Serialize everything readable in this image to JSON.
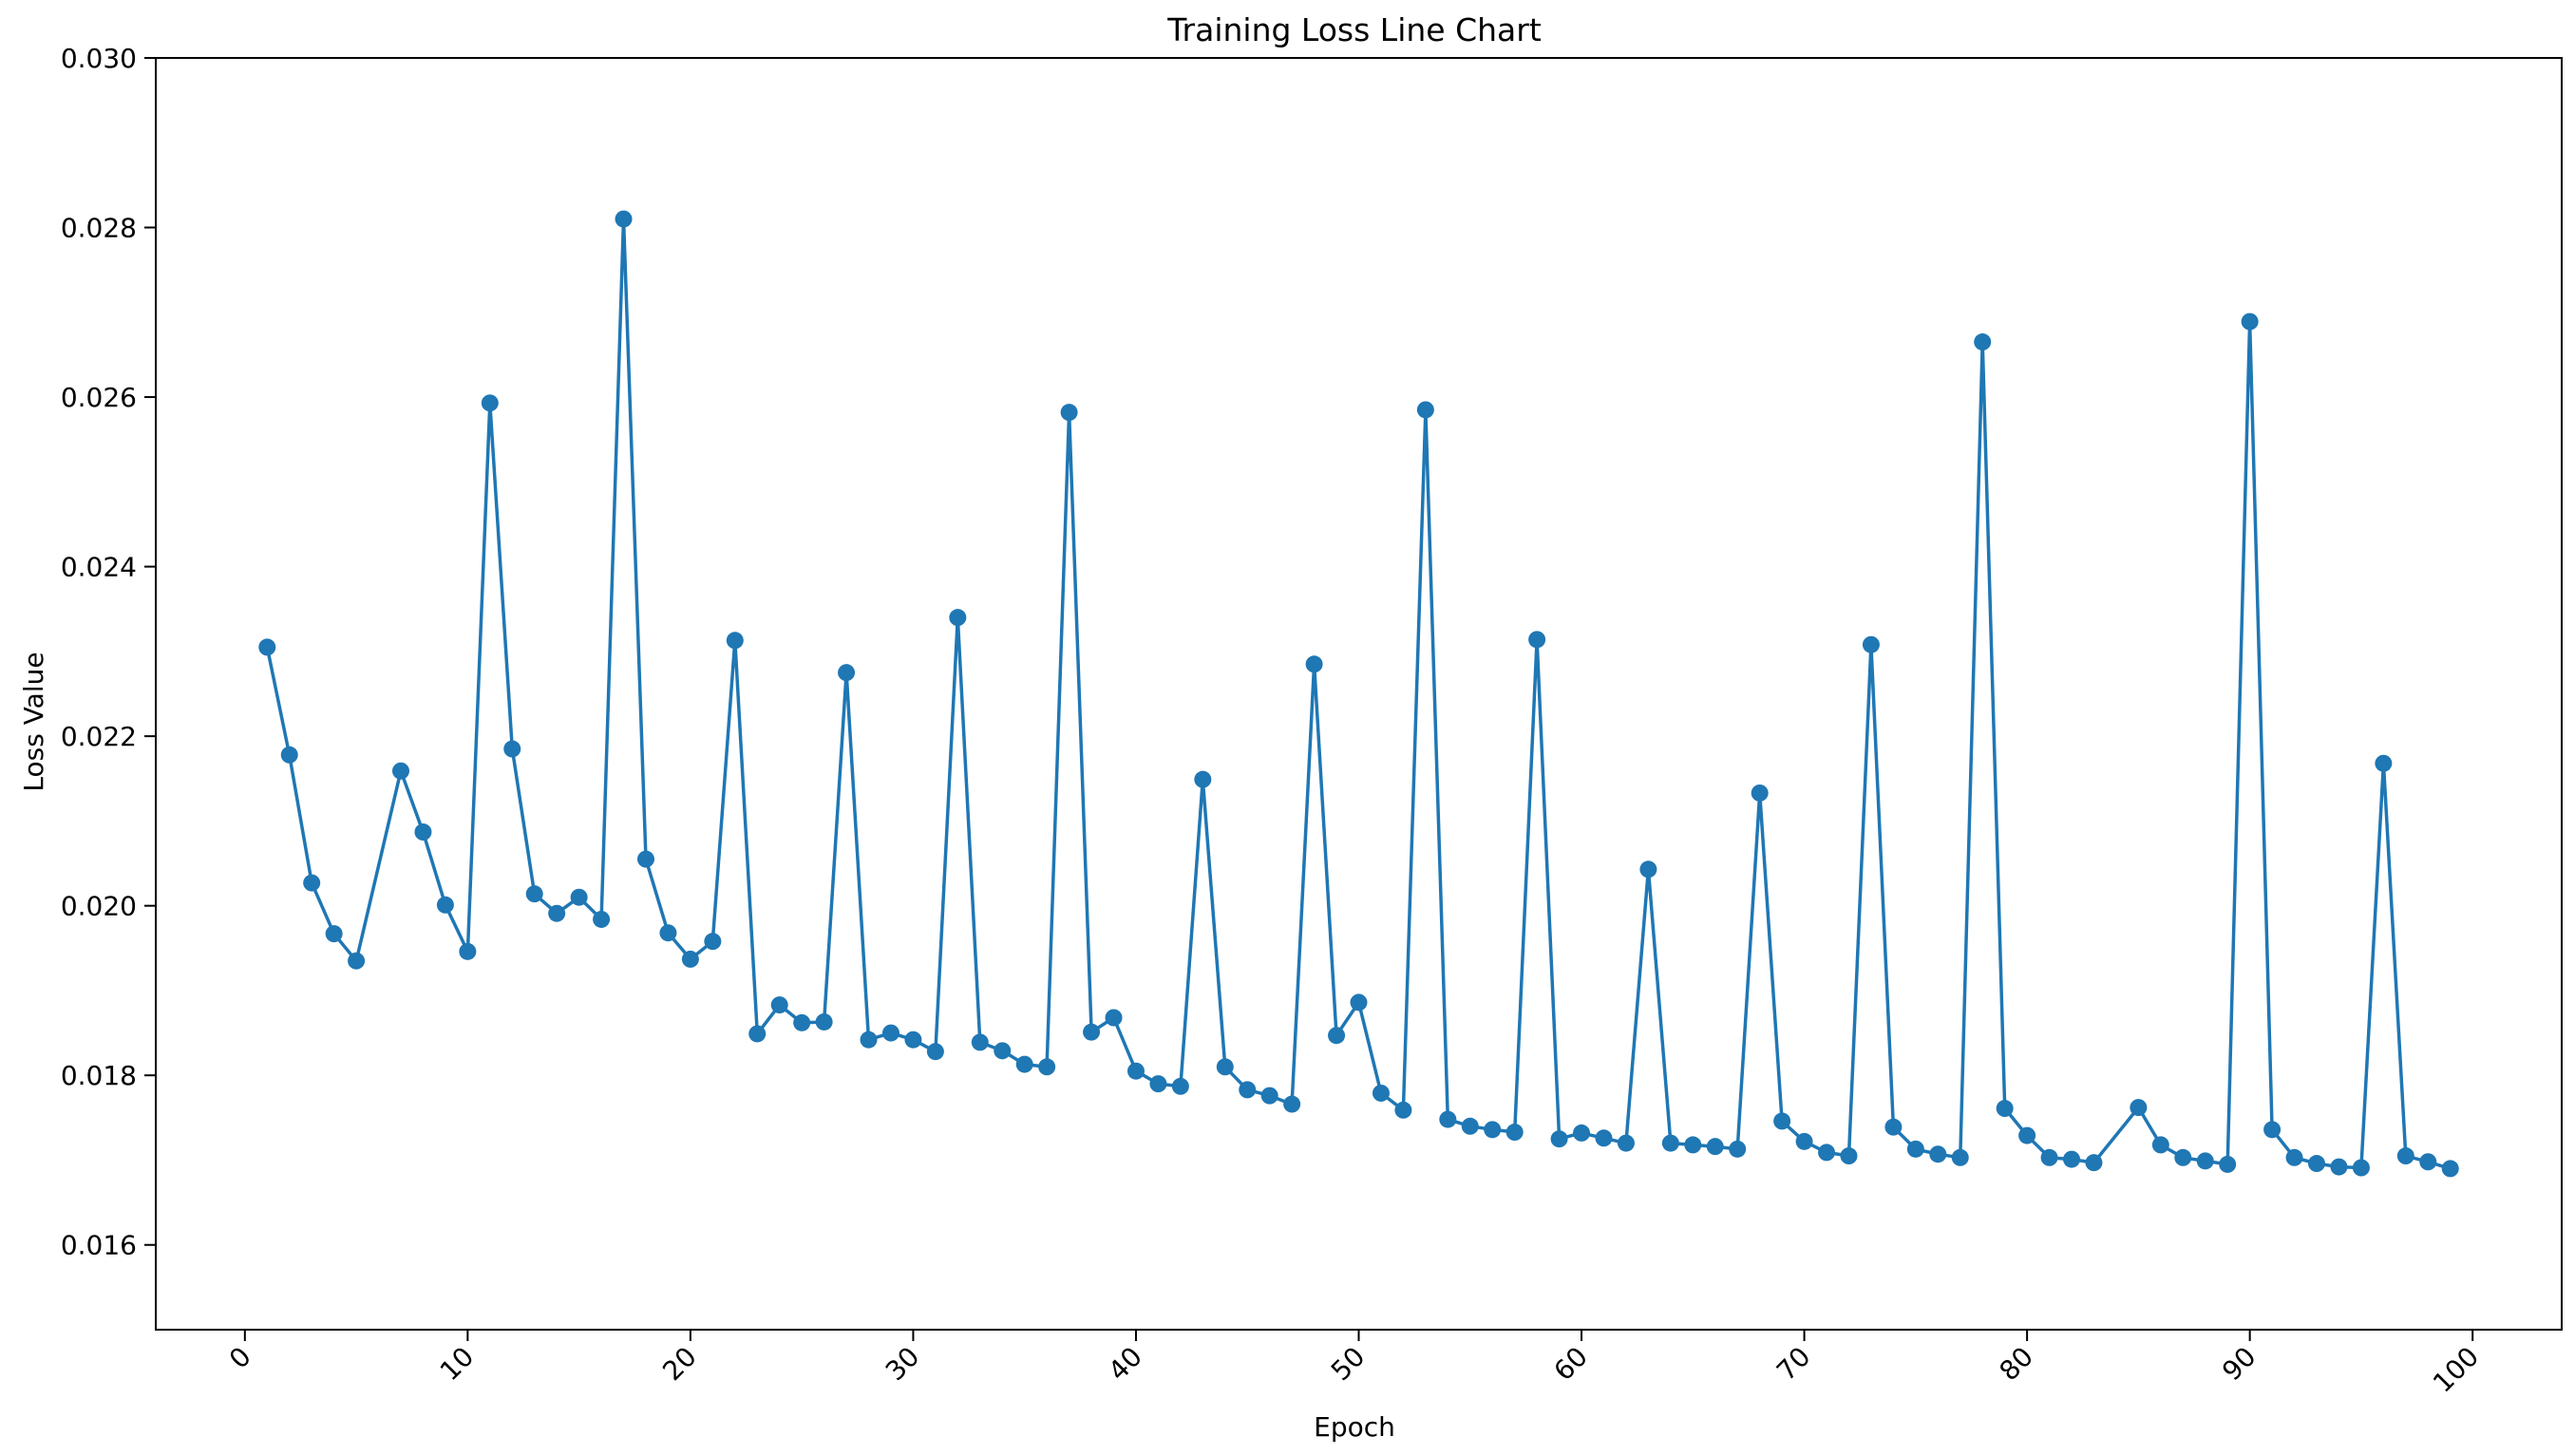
{
  "colors": {
    "series": "#1f77b4",
    "axes": "#000000",
    "background": "#ffffff"
  },
  "chart_data": {
    "type": "line",
    "title": "Training Loss Line Chart",
    "xlabel": "Epoch",
    "ylabel": "Loss Value",
    "xlim": [
      -4,
      104
    ],
    "ylim": [
      0.015,
      0.03
    ],
    "xticks": [
      0,
      10,
      20,
      30,
      40,
      50,
      60,
      70,
      80,
      90,
      100
    ],
    "xtick_labels": [
      "0",
      "10",
      "20",
      "30",
      "40",
      "50",
      "60",
      "70",
      "80",
      "90",
      "100"
    ],
    "yticks": [
      0.016,
      0.018,
      0.02,
      0.022,
      0.024,
      0.026,
      0.028,
      0.03
    ],
    "ytick_labels": [
      "0.016",
      "0.018",
      "0.020",
      "0.022",
      "0.024",
      "0.026",
      "0.028",
      "0.030"
    ],
    "grid": false,
    "legend": "none",
    "marker": "circle",
    "series": [
      {
        "x": [
          1,
          2,
          3,
          4,
          5,
          7,
          8,
          9,
          10,
          11,
          12,
          13,
          14,
          15,
          16,
          17,
          18,
          19,
          20,
          21,
          22,
          23,
          24,
          25,
          26,
          27,
          28,
          29,
          30,
          31,
          32,
          33,
          34,
          35,
          36,
          37,
          38,
          39,
          40,
          41,
          42,
          43,
          44,
          45,
          46,
          47,
          48,
          49,
          50,
          51,
          52,
          53,
          54,
          55,
          56,
          57,
          58,
          59,
          60,
          61,
          62,
          63,
          64,
          65,
          66,
          67,
          68,
          69,
          70,
          71,
          72,
          73,
          74,
          75,
          76,
          77,
          78,
          79,
          80,
          81,
          82,
          83,
          85,
          86,
          87,
          88,
          89,
          90,
          91,
          92,
          93,
          94,
          95,
          96,
          97,
          98,
          99
        ],
        "y": [
          0.02305,
          0.02178,
          0.02027,
          0.01967,
          0.01935,
          0.02159,
          0.02087,
          0.02001,
          0.01946,
          0.02593,
          0.02185,
          0.02014,
          0.01991,
          0.0201,
          0.01984,
          0.0281,
          0.02055,
          0.01968,
          0.01937,
          0.01958,
          0.02313,
          0.01849,
          0.01883,
          0.01862,
          0.01863,
          0.02275,
          0.01842,
          0.0185,
          0.01842,
          0.01828,
          0.0234,
          0.01839,
          0.01829,
          0.01813,
          0.0181,
          0.02582,
          0.01851,
          0.01868,
          0.01805,
          0.0179,
          0.01787,
          0.02149,
          0.0181,
          0.01783,
          0.01776,
          0.01766,
          0.02285,
          0.01847,
          0.01886,
          0.01779,
          0.01759,
          0.02585,
          0.01748,
          0.0174,
          0.01736,
          0.01733,
          0.02314,
          0.01725,
          0.01732,
          0.01726,
          0.0172,
          0.02043,
          0.0172,
          0.01718,
          0.01716,
          0.01713,
          0.02133,
          0.01746,
          0.01722,
          0.01709,
          0.01705,
          0.02308,
          0.01739,
          0.01713,
          0.01707,
          0.01703,
          0.02665,
          0.01761,
          0.01729,
          0.01703,
          0.01701,
          0.01697,
          0.01762,
          0.01718,
          0.01703,
          0.01699,
          0.01695,
          0.02689,
          0.01736,
          0.01703,
          0.01696,
          0.01692,
          0.01691,
          0.02168,
          0.01705,
          0.01698,
          0.0169
        ]
      }
    ]
  }
}
